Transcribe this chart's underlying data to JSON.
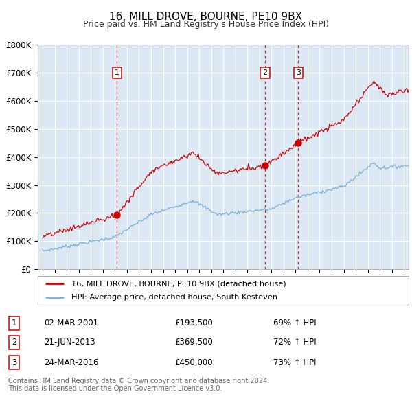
{
  "title": "16, MILL DROVE, BOURNE, PE10 9BX",
  "subtitle": "Price paid vs. HM Land Registry's House Price Index (HPI)",
  "legend_property": "16, MILL DROVE, BOURNE, PE10 9BX (detached house)",
  "legend_hpi": "HPI: Average price, detached house, South Kesteven",
  "footer": "Contains HM Land Registry data © Crown copyright and database right 2024.\nThis data is licensed under the Open Government Licence v3.0.",
  "property_color": "#cc0000",
  "hpi_color": "#7bafd4",
  "background_color": "#dce9f5",
  "vline_color": "#cc0000",
  "purchases": [
    {
      "num": 1,
      "date": "02-MAR-2001",
      "price": 193500,
      "price_str": "£193,500",
      "pct": "69% ↑ HPI",
      "x": 2001.17
    },
    {
      "num": 2,
      "date": "21-JUN-2013",
      "price": 369500,
      "price_str": "£369,500",
      "pct": "72% ↑ HPI",
      "x": 2013.47
    },
    {
      "num": 3,
      "date": "24-MAR-2016",
      "price": 450000,
      "price_str": "£450,000",
      "pct": "73% ↑ HPI",
      "x": 2016.23
    }
  ],
  "ylim": [
    0,
    800000
  ],
  "yticks": [
    0,
    100000,
    200000,
    300000,
    400000,
    500000,
    600000,
    700000,
    800000
  ],
  "ytick_labels": [
    "£0",
    "£100K",
    "£200K",
    "£300K",
    "£400K",
    "£500K",
    "£600K",
    "£700K",
    "£800K"
  ],
  "xlim_left": 1994.6,
  "xlim_right": 2025.4
}
